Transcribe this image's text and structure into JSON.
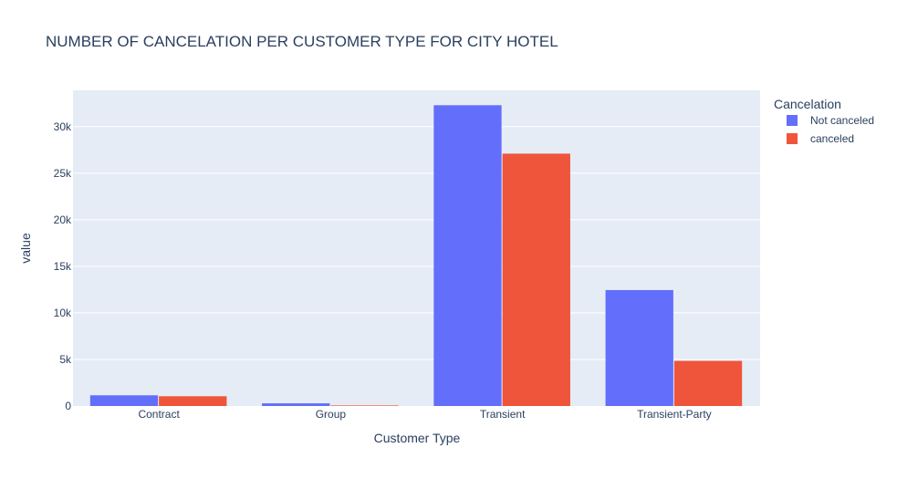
{
  "chart_data": {
    "type": "bar",
    "title": "NUMBER OF CANCELATION PER CUSTOMER TYPE FOR CITY HOTEL",
    "xlabel": "Customer Type",
    "ylabel": "value",
    "categories": [
      "Contract",
      "Group",
      "Transient",
      "Transient-Party"
    ],
    "series": [
      {
        "name": "Not canceled",
        "color": "#636efa",
        "values": [
          1150,
          290,
          32300,
          12450
        ]
      },
      {
        "name": "canceled",
        "color": "#ef553b",
        "values": [
          1050,
          60,
          27100,
          4850
        ]
      }
    ],
    "ylim": [
      0,
      33900
    ],
    "yticks": [
      0,
      5000,
      10000,
      15000,
      20000,
      25000,
      30000
    ],
    "ytick_labels": [
      "0",
      "5k",
      "10k",
      "15k",
      "20k",
      "25k",
      "30k"
    ],
    "grid": true,
    "legend": {
      "title": "Cancelation",
      "placement": "top-right"
    },
    "colors": {
      "plot_bg": "#e5ecf6",
      "grid": "#ffffff",
      "text": "#2a3f5f"
    }
  }
}
